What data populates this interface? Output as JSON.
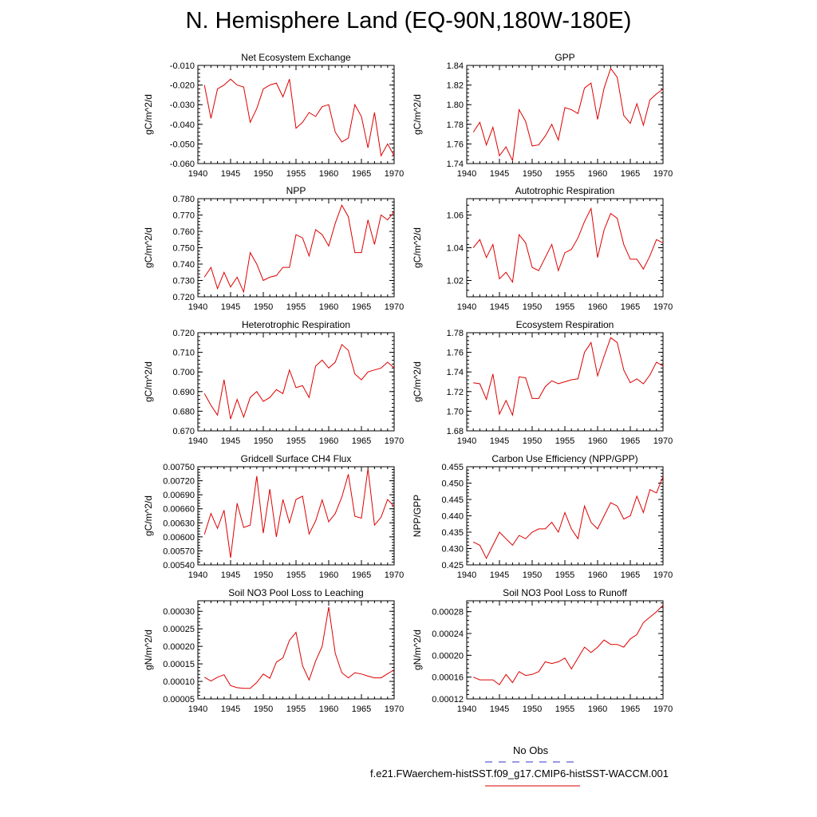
{
  "page": {
    "title": "N. Hemisphere Land (EQ-90N,180W-180E)"
  },
  "legend": {
    "entries": [
      {
        "label": "No Obs",
        "color": "#3333cc",
        "style": "dashed"
      },
      {
        "label": "f.e21.FWaerchem-histSST.f09_g17.CMIP6-histSST-WACCM.001",
        "color": "#dd0000",
        "style": "solid"
      }
    ]
  },
  "chart_data": [
    {
      "type": "line",
      "title": "Net Ecosystem Exchange",
      "ylabel": "gC/m^2/d",
      "xlim": [
        1940,
        1970
      ],
      "ylim": [
        -0.06,
        -0.01
      ],
      "xticks": [
        "1940",
        "1945",
        "1950",
        "1955",
        "1960",
        "1965",
        "1970"
      ],
      "yticks": [
        "-0.010",
        "-0.020",
        "-0.030",
        "-0.040",
        "-0.050",
        "-0.060"
      ],
      "ytick_values": [
        -0.01,
        -0.02,
        -0.03,
        -0.04,
        -0.05,
        -0.06
      ],
      "x": [
        1941,
        1942,
        1943,
        1944,
        1945,
        1946,
        1947,
        1948,
        1949,
        1950,
        1951,
        1952,
        1953,
        1954,
        1955,
        1956,
        1957,
        1958,
        1959,
        1960,
        1961,
        1962,
        1963,
        1964,
        1965,
        1966,
        1967,
        1968,
        1969,
        1970
      ],
      "series": [
        {
          "values": [
            -0.02,
            -0.037,
            -0.022,
            -0.02,
            -0.017,
            -0.02,
            -0.021,
            -0.039,
            -0.032,
            -0.022,
            -0.02,
            -0.019,
            -0.026,
            -0.017,
            -0.042,
            -0.039,
            -0.034,
            -0.036,
            -0.031,
            -0.03,
            -0.044,
            -0.049,
            -0.047,
            -0.03,
            -0.036,
            -0.052,
            -0.034,
            -0.056,
            -0.05,
            -0.056
          ],
          "color": "#dd0000"
        }
      ]
    },
    {
      "type": "line",
      "title": "GPP",
      "ylabel": "gC/m^2/d",
      "xlim": [
        1940,
        1970
      ],
      "ylim": [
        1.74,
        1.84
      ],
      "xticks": [
        "1940",
        "1945",
        "1950",
        "1955",
        "1960",
        "1965",
        "1970"
      ],
      "yticks": [
        "1.84",
        "1.82",
        "1.80",
        "1.78",
        "1.76",
        "1.74"
      ],
      "ytick_values": [
        1.84,
        1.82,
        1.8,
        1.78,
        1.76,
        1.74
      ],
      "x": [
        1941,
        1942,
        1943,
        1944,
        1945,
        1946,
        1947,
        1948,
        1949,
        1950,
        1951,
        1952,
        1953,
        1954,
        1955,
        1956,
        1957,
        1958,
        1959,
        1960,
        1961,
        1962,
        1963,
        1964,
        1965,
        1966,
        1967,
        1968,
        1969,
        1970
      ],
      "series": [
        {
          "values": [
            1.772,
            1.782,
            1.759,
            1.777,
            1.748,
            1.757,
            1.743,
            1.795,
            1.783,
            1.758,
            1.759,
            1.768,
            1.78,
            1.764,
            1.797,
            1.795,
            1.791,
            1.817,
            1.822,
            1.785,
            1.817,
            1.837,
            1.828,
            1.789,
            1.781,
            1.801,
            1.779,
            1.805,
            1.811,
            1.816
          ],
          "color": "#dd0000"
        }
      ]
    },
    {
      "type": "line",
      "title": "NPP",
      "ylabel": "gC/m^2/d",
      "xlim": [
        1940,
        1970
      ],
      "ylim": [
        0.72,
        0.78
      ],
      "xticks": [
        "1940",
        "1945",
        "1950",
        "1955",
        "1960",
        "1965",
        "1970"
      ],
      "yticks": [
        "0.780",
        "0.770",
        "0.760",
        "0.750",
        "0.740",
        "0.730",
        "0.720"
      ],
      "ytick_values": [
        0.78,
        0.77,
        0.76,
        0.75,
        0.74,
        0.73,
        0.72
      ],
      "x": [
        1941,
        1942,
        1943,
        1944,
        1945,
        1946,
        1947,
        1948,
        1949,
        1950,
        1951,
        1952,
        1953,
        1954,
        1955,
        1956,
        1957,
        1958,
        1959,
        1960,
        1961,
        1962,
        1963,
        1964,
        1965,
        1966,
        1967,
        1968,
        1969,
        1970
      ],
      "series": [
        {
          "values": [
            0.732,
            0.738,
            0.725,
            0.735,
            0.726,
            0.732,
            0.723,
            0.747,
            0.74,
            0.73,
            0.732,
            0.733,
            0.738,
            0.738,
            0.758,
            0.756,
            0.745,
            0.761,
            0.758,
            0.751,
            0.765,
            0.776,
            0.769,
            0.747,
            0.747,
            0.767,
            0.752,
            0.77,
            0.767,
            0.772
          ],
          "color": "#dd0000"
        }
      ]
    },
    {
      "type": "line",
      "title": "Autotrophic Respiration",
      "ylabel": "gC/m^2/d",
      "xlim": [
        1940,
        1970
      ],
      "ylim": [
        1.01,
        1.07
      ],
      "xticks": [
        "1940",
        "1945",
        "1950",
        "1955",
        "1960",
        "1965",
        "1970"
      ],
      "yticks": [
        "1.06",
        "1.04",
        "1.02"
      ],
      "ytick_values": [
        1.06,
        1.04,
        1.02
      ],
      "x": [
        1941,
        1942,
        1943,
        1944,
        1945,
        1946,
        1947,
        1948,
        1949,
        1950,
        1951,
        1952,
        1953,
        1954,
        1955,
        1956,
        1957,
        1958,
        1959,
        1960,
        1961,
        1962,
        1963,
        1964,
        1965,
        1966,
        1967,
        1968,
        1969,
        1970
      ],
      "series": [
        {
          "values": [
            1.04,
            1.045,
            1.034,
            1.042,
            1.021,
            1.025,
            1.019,
            1.048,
            1.043,
            1.028,
            1.026,
            1.034,
            1.042,
            1.026,
            1.037,
            1.039,
            1.046,
            1.056,
            1.064,
            1.034,
            1.051,
            1.061,
            1.058,
            1.042,
            1.033,
            1.033,
            1.027,
            1.035,
            1.045,
            1.043
          ],
          "color": "#dd0000"
        }
      ]
    },
    {
      "type": "line",
      "title": "Heterotrophic Respiration",
      "ylabel": "gC/m^2/d",
      "xlim": [
        1940,
        1970
      ],
      "ylim": [
        0.67,
        0.72
      ],
      "xticks": [
        "1940",
        "1945",
        "1950",
        "1955",
        "1960",
        "1965",
        "1970"
      ],
      "yticks": [
        "0.720",
        "0.710",
        "0.700",
        "0.690",
        "0.680",
        "0.670"
      ],
      "ytick_values": [
        0.72,
        0.71,
        0.7,
        0.69,
        0.68,
        0.67
      ],
      "x": [
        1941,
        1942,
        1943,
        1944,
        1945,
        1946,
        1947,
        1948,
        1949,
        1950,
        1951,
        1952,
        1953,
        1954,
        1955,
        1956,
        1957,
        1958,
        1959,
        1960,
        1961,
        1962,
        1963,
        1964,
        1965,
        1966,
        1967,
        1968,
        1969,
        1970
      ],
      "series": [
        {
          "values": [
            0.689,
            0.683,
            0.678,
            0.696,
            0.676,
            0.686,
            0.677,
            0.687,
            0.69,
            0.685,
            0.687,
            0.691,
            0.689,
            0.701,
            0.692,
            0.693,
            0.687,
            0.703,
            0.706,
            0.702,
            0.705,
            0.714,
            0.711,
            0.699,
            0.696,
            0.7,
            0.701,
            0.702,
            0.705,
            0.702
          ],
          "color": "#dd0000"
        }
      ]
    },
    {
      "type": "line",
      "title": "Ecosystem Respiration",
      "ylabel": "gC/m^2/d",
      "xlim": [
        1940,
        1970
      ],
      "ylim": [
        1.68,
        1.78
      ],
      "xticks": [
        "1940",
        "1945",
        "1950",
        "1955",
        "1960",
        "1965",
        "1970"
      ],
      "yticks": [
        "1.78",
        "1.76",
        "1.74",
        "1.72",
        "1.70",
        "1.68"
      ],
      "ytick_values": [
        1.78,
        1.76,
        1.74,
        1.72,
        1.7,
        1.68
      ],
      "x": [
        1941,
        1942,
        1943,
        1944,
        1945,
        1946,
        1947,
        1948,
        1949,
        1950,
        1951,
        1952,
        1953,
        1954,
        1955,
        1956,
        1957,
        1958,
        1959,
        1960,
        1961,
        1962,
        1963,
        1964,
        1965,
        1966,
        1967,
        1968,
        1969,
        1970
      ],
      "series": [
        {
          "values": [
            1.729,
            1.728,
            1.712,
            1.738,
            1.697,
            1.711,
            1.696,
            1.735,
            1.734,
            1.713,
            1.713,
            1.725,
            1.731,
            1.728,
            1.73,
            1.732,
            1.733,
            1.76,
            1.77,
            1.736,
            1.756,
            1.775,
            1.77,
            1.742,
            1.729,
            1.733,
            1.728,
            1.737,
            1.75,
            1.746
          ],
          "color": "#dd0000"
        }
      ]
    },
    {
      "type": "line",
      "title": "Gridcell Surface CH4 Flux",
      "ylabel": "gC/m^2/d",
      "xlim": [
        1940,
        1970
      ],
      "ylim": [
        0.0054,
        0.0075
      ],
      "xticks": [
        "1940",
        "1945",
        "1950",
        "1955",
        "1960",
        "1965",
        "1970"
      ],
      "yticks": [
        "0.00750",
        "0.00720",
        "0.00690",
        "0.00660",
        "0.00630",
        "0.00600",
        "0.00570",
        "0.00540"
      ],
      "ytick_values": [
        0.0075,
        0.0072,
        0.0069,
        0.0066,
        0.0063,
        0.006,
        0.0057,
        0.0054
      ],
      "x": [
        1941,
        1942,
        1943,
        1944,
        1945,
        1946,
        1947,
        1948,
        1949,
        1950,
        1951,
        1952,
        1953,
        1954,
        1955,
        1956,
        1957,
        1958,
        1959,
        1960,
        1961,
        1962,
        1963,
        1964,
        1965,
        1966,
        1967,
        1968,
        1969,
        1970
      ],
      "series": [
        {
          "values": [
            0.00605,
            0.0065,
            0.00618,
            0.00657,
            0.00555,
            0.00672,
            0.0062,
            0.00625,
            0.0073,
            0.00608,
            0.00702,
            0.006,
            0.0068,
            0.0063,
            0.0068,
            0.00687,
            0.00606,
            0.00634,
            0.00679,
            0.00632,
            0.0065,
            0.00685,
            0.00734,
            0.00644,
            0.0064,
            0.00746,
            0.00625,
            0.00642,
            0.0068,
            0.00665
          ],
          "color": "#dd0000"
        }
      ]
    },
    {
      "type": "line",
      "title": "Carbon Use Efficiency (NPP/GPP)",
      "ylabel": "NPP/GPP",
      "xlim": [
        1940,
        1970
      ],
      "ylim": [
        0.425,
        0.455
      ],
      "xticks": [
        "1940",
        "1945",
        "1950",
        "1955",
        "1960",
        "1965",
        "1970"
      ],
      "yticks": [
        "0.455",
        "0.450",
        "0.445",
        "0.440",
        "0.435",
        "0.430",
        "0.425"
      ],
      "ytick_values": [
        0.455,
        0.45,
        0.445,
        0.44,
        0.435,
        0.43,
        0.425
      ],
      "x": [
        1941,
        1942,
        1943,
        1944,
        1945,
        1946,
        1947,
        1948,
        1949,
        1950,
        1951,
        1952,
        1953,
        1954,
        1955,
        1956,
        1957,
        1958,
        1959,
        1960,
        1961,
        1962,
        1963,
        1964,
        1965,
        1966,
        1967,
        1968,
        1969,
        1970
      ],
      "series": [
        {
          "values": [
            0.432,
            0.431,
            0.427,
            0.431,
            0.435,
            0.433,
            0.431,
            0.434,
            0.433,
            0.435,
            0.436,
            0.436,
            0.438,
            0.435,
            0.441,
            0.436,
            0.433,
            0.443,
            0.438,
            0.436,
            0.44,
            0.444,
            0.443,
            0.439,
            0.44,
            0.446,
            0.441,
            0.448,
            0.447,
            0.452
          ],
          "color": "#dd0000"
        }
      ]
    },
    {
      "type": "line",
      "title": "Soil NO3 Pool Loss to Leaching",
      "ylabel": "gN/m^2/d",
      "xlim": [
        1940,
        1970
      ],
      "ylim": [
        5e-05,
        0.00033
      ],
      "xticks": [
        "1940",
        "1945",
        "1950",
        "1955",
        "1960",
        "1965",
        "1970"
      ],
      "yticks": [
        "0.00030",
        "0.00025",
        "0.00020",
        "0.00015",
        "0.00010",
        "0.00005"
      ],
      "ytick_values": [
        0.0003,
        0.00025,
        0.0002,
        0.00015,
        0.0001,
        5e-05
      ],
      "x": [
        1941,
        1942,
        1943,
        1944,
        1945,
        1946,
        1947,
        1948,
        1949,
        1950,
        1951,
        1952,
        1953,
        1954,
        1955,
        1956,
        1957,
        1958,
        1959,
        1960,
        1961,
        1962,
        1963,
        1964,
        1965,
        1966,
        1967,
        1968,
        1969,
        1970
      ],
      "series": [
        {
          "values": [
            0.000112,
            0.000101,
            0.000112,
            0.000119,
            8.8e-05,
            8.2e-05,
            8e-05,
            8e-05,
            9.7e-05,
            0.000121,
            0.000109,
            0.000155,
            0.000167,
            0.000217,
            0.00024,
            0.000145,
            0.000104,
            0.000158,
            0.0002,
            0.000312,
            0.00018,
            0.000125,
            0.00011,
            0.000125,
            0.000121,
            0.000115,
            0.00011,
            0.00011,
            0.000122,
            0.000133
          ],
          "color": "#dd0000"
        }
      ]
    },
    {
      "type": "line",
      "title": "Soil NO3 Pool Loss to Runoff",
      "ylabel": "gN/m^2/d",
      "xlim": [
        1940,
        1970
      ],
      "ylim": [
        0.00012,
        0.0003
      ],
      "xticks": [
        "1940",
        "1945",
        "1950",
        "1955",
        "1960",
        "1965",
        "1970"
      ],
      "yticks": [
        "0.00028",
        "0.00024",
        "0.00020",
        "0.00016",
        "0.00012"
      ],
      "ytick_values": [
        0.00028,
        0.00024,
        0.0002,
        0.00016,
        0.00012
      ],
      "x": [
        1941,
        1942,
        1943,
        1944,
        1945,
        1946,
        1947,
        1948,
        1949,
        1950,
        1951,
        1952,
        1953,
        1954,
        1955,
        1956,
        1957,
        1958,
        1959,
        1960,
        1961,
        1962,
        1963,
        1964,
        1965,
        1966,
        1967,
        1968,
        1969,
        1970
      ],
      "series": [
        {
          "values": [
            0.00016,
            0.000155,
            0.000155,
            0.000155,
            0.000146,
            0.000165,
            0.00015,
            0.00017,
            0.000163,
            0.000165,
            0.00017,
            0.000188,
            0.000185,
            0.000188,
            0.000195,
            0.000175,
            0.000195,
            0.000215,
            0.000205,
            0.000215,
            0.000228,
            0.00022,
            0.00022,
            0.000215,
            0.00023,
            0.000238,
            0.00026,
            0.00027,
            0.00028,
            0.000292
          ],
          "color": "#dd0000"
        }
      ]
    }
  ]
}
